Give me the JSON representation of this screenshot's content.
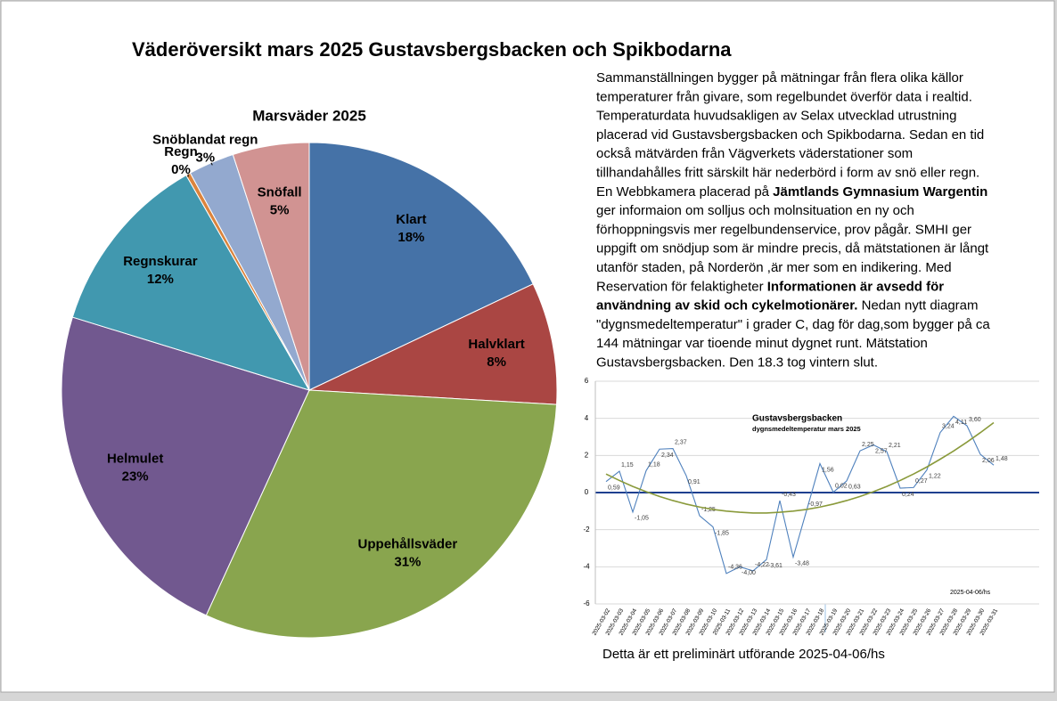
{
  "header": {
    "title": "Väderöversikt  mars 2025 Gustavsbergsbacken och Spikbodarna"
  },
  "text": {
    "lines": [
      [
        {
          "t": "Sammanställningen bygger på mätningar från flera olika källor",
          "bold": false
        }
      ],
      [
        {
          "t": "temperaturer från givare, som regelbundet överför data i realtid.",
          "bold": false
        }
      ],
      [
        {
          "t": "Temperaturdata huvudsakligen av Selax utvecklad utrustning",
          "bold": false
        }
      ],
      [
        {
          "t": "placerad vid Gustavsbergsbacken och Spikbodarna. Sedan en tid",
          "bold": false
        }
      ],
      [
        {
          "t": "också mätvärden från Vägverkets väderstationer som",
          "bold": false
        }
      ],
      [
        {
          "t": "tillhandahålles fritt särskilt här nederbörd i form av snö eller regn.",
          "bold": false
        }
      ],
      [
        {
          "t": "En Webbkamera placerad på ",
          "bold": false
        },
        {
          "t": "Jämtlands Gymnasium Wargentin",
          "bold": true
        }
      ],
      [
        {
          "t": "ger  informaion om solljus och molnsituation en ny och",
          "bold": false
        }
      ],
      [
        {
          "t": "förhoppningsvis mer regelbundenservice, prov pågår. SMHI ger",
          "bold": false
        }
      ],
      [
        {
          "t": "uppgift om snödjup som är mindre precis, då mätstationen är långt",
          "bold": false
        }
      ],
      [
        {
          "t": "utanför staden, på Norderön ,är mer som en indikering.  Med",
          "bold": false
        }
      ],
      [
        {
          "t": "Reservation för felaktigheter        ",
          "bold": false
        },
        {
          "t": "Informationen  är avsedd för",
          "bold": true
        }
      ],
      [
        {
          "t": "användning  av skid och cykelmotionärer.",
          "bold": true
        },
        {
          "t": " Nedan nytt diagram",
          "bold": false
        }
      ],
      [
        {
          "t": "\"dygnsmedeltemperatur\" i grader C, dag för dag,som bygger på ca",
          "bold": false
        }
      ],
      [
        {
          "t": "144 mätningar var tioende minut dygnet runt. Mätstation",
          "bold": false
        }
      ],
      [
        {
          "t": "Gustavsbergsbacken. Den 18.3 tog vintern slut.",
          "bold": false
        }
      ]
    ]
  },
  "footer": "Detta är ett preliminärt utförande 2025-04-06/hs",
  "chart_data": [
    {
      "type": "pie",
      "title": "Marsväder 2025",
      "categories": [
        "Klart",
        "Halvklart",
        "Uppehållsväder",
        "Helmulet",
        "Regnskurar",
        "Regn",
        "Snöblandat regn",
        "Snöfall"
      ],
      "values": [
        18,
        8,
        31,
        23,
        12,
        0.3,
        3,
        5
      ],
      "value_labels": [
        "18%",
        "8%",
        "31%",
        "23%",
        "12%",
        "0%",
        "3%",
        "5%"
      ],
      "colors": [
        "#4572a7",
        "#aa4643",
        "#89a54e",
        "#71588f",
        "#4198af",
        "#db843d",
        "#93a9cf",
        "#d19392"
      ]
    },
    {
      "type": "line",
      "title": "Gustavsbergsbacken",
      "subtitle": "dygnsmedeltemperatur  mars  2025",
      "annotation": "2025-04-06/hs",
      "categories": [
        "2025-03-02",
        "2025-03-03",
        "2025-03-04",
        "2025-03-05",
        "2025-03-06",
        "2025-03-07",
        "2025-03-08",
        "2025-03-09",
        "2025-03-10",
        "2025-03-11",
        "2025-03-12",
        "2025-03-13",
        "2025-03-14",
        "2025-03-15",
        "2025-03-16",
        "2025-03-17",
        "2025-03-18",
        "2025-03-19",
        "2025-03-20",
        "2025-03-21",
        "2025-03-22",
        "2025-03-23",
        "2025-03-24",
        "2025-03-25",
        "2025-03-26",
        "2025-03-27",
        "2025-03-28",
        "2025-03-29",
        "2025-03-30",
        "2025-03-31"
      ],
      "series": [
        {
          "color": "#4f81bd",
          "values": [
            0.59,
            1.15,
            -1.05,
            1.18,
            2.34,
            2.37,
            0.91,
            -1.25,
            -1.85,
            -4.36,
            -4.0,
            -4.22,
            -3.61,
            -0.43,
            -3.48,
            -0.97,
            1.56,
            0.02,
            0.63,
            2.25,
            2.57,
            2.21,
            0.24,
            0.27,
            1.22,
            3.24,
            4.11,
            3.6,
            2.06,
            1.48
          ],
          "value_labels": [
            "0,59",
            "1,15",
            "-1,05",
            "1,18",
            "2,34",
            "2,37",
            "0,91",
            "-1,25",
            "-1,85",
            "-4,36",
            "-4,00",
            "-4,22",
            "-3,61",
            "-0,43",
            "-3,48",
            "-0,97",
            "1,56",
            "0,02",
            "0,63",
            "2,25",
            "2,57",
            "2,21",
            "0,24",
            "0,27",
            "1,22",
            "3,24",
            "4,11",
            "3,60",
            "2,06",
            "1,48"
          ]
        },
        {
          "color": "#8a9a3b",
          "values": [
            1.0,
            0.65,
            0.33,
            0.05,
            -0.21,
            -0.43,
            -0.62,
            -0.78,
            -0.91,
            -1.0,
            -1.06,
            -1.1,
            -1.1,
            -1.06,
            -1.0,
            -0.91,
            -0.78,
            -0.62,
            -0.43,
            -0.21,
            0.05,
            0.33,
            0.65,
            1.0,
            1.38,
            1.8,
            2.24,
            2.72,
            3.23,
            3.77
          ]
        }
      ],
      "ylim": [
        -6,
        6
      ],
      "yticks": [
        -6,
        -4,
        -2,
        0,
        2,
        4,
        6
      ],
      "grid": true
    }
  ]
}
